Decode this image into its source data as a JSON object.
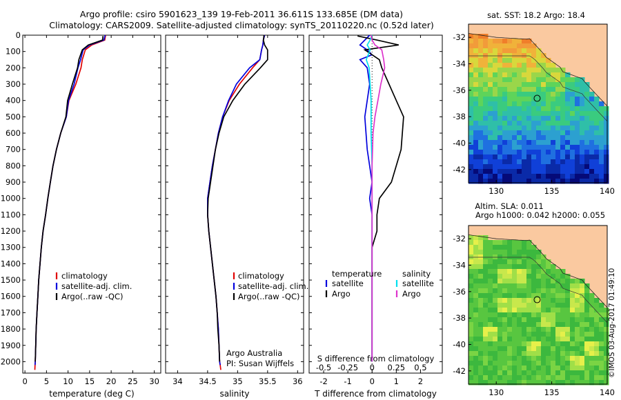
{
  "header": {
    "line1": "Argo profile: csiro 5901623_139 19-Feb-2011 36.611S 133.685E (DM data)",
    "line2": "Climatology: CARS2009. Satellite-adjusted climatology: synTS_20110220.nc (0.52d later)"
  },
  "watermark": "©IMOS 03-Aug-2017 01:49:10",
  "colors": {
    "climatology": "#e00000",
    "satellite": "#0000dd",
    "argo": "#000000",
    "satellite_salinity": "#00e0ee",
    "argo_salinity": "#dd33cc",
    "land": "#fac9a0"
  },
  "chart_data": [
    {
      "type": "line",
      "panel": "temperature",
      "xlabel": "temperature (deg C)",
      "ylabel": "",
      "xlim": [
        -0.5,
        31.5
      ],
      "ylim": [
        2070,
        0
      ],
      "xticks": [
        0,
        5,
        10,
        15,
        20,
        25,
        30
      ],
      "yticks": [
        0,
        100,
        200,
        300,
        400,
        500,
        600,
        700,
        800,
        900,
        1000,
        1100,
        1200,
        1300,
        1400,
        1500,
        1600,
        1700,
        1800,
        1900,
        2000
      ],
      "legend": [
        "climatology",
        "satellite-adj. clim.",
        "Argo(..raw -QC)"
      ],
      "series": [
        {
          "name": "climatology",
          "color": "climatology",
          "x": [
            18.7,
            18.5,
            15.5,
            14.0,
            13.3,
            13.0,
            11.8,
            10.2,
            9.6,
            8.3,
            7.3,
            6.5,
            5.9,
            5.3,
            4.8,
            4.2,
            3.8,
            3.5,
            3.2,
            3.0,
            2.8,
            2.6,
            2.5,
            2.4,
            2.35,
            2.3
          ],
          "y": [
            0,
            30,
            60,
            90,
            150,
            200,
            300,
            400,
            500,
            600,
            700,
            800,
            900,
            1000,
            1100,
            1200,
            1300,
            1400,
            1500,
            1600,
            1700,
            1800,
            1900,
            2000,
            2020,
            2050
          ]
        },
        {
          "name": "satellite-adj. clim.",
          "color": "satellite",
          "x": [
            18.6,
            18.3,
            15.0,
            13.5,
            12.9,
            12.3,
            11.4,
            10.1,
            9.6,
            8.3,
            7.3,
            6.5,
            5.9,
            5.3,
            4.8,
            4.2,
            3.8,
            3.5,
            3.2,
            3.0,
            2.8,
            2.6,
            2.5,
            2.4,
            2.35
          ],
          "y": [
            0,
            30,
            60,
            90,
            150,
            200,
            300,
            400,
            500,
            600,
            700,
            800,
            900,
            1000,
            1100,
            1200,
            1300,
            1400,
            1500,
            1600,
            1700,
            1800,
            1900,
            2000,
            2020
          ]
        },
        {
          "name": "Argo(..raw -QC)",
          "color": "argo",
          "x": [
            18.1,
            18.0,
            14.7,
            13.3,
            12.5,
            12.2,
            11.0,
            9.9,
            9.5,
            8.3,
            7.3,
            6.5,
            5.9,
            5.3,
            4.8,
            4.2,
            3.8,
            3.5,
            3.2,
            3.0,
            2.8,
            2.6,
            2.5,
            2.4
          ],
          "y": [
            5,
            30,
            60,
            90,
            150,
            200,
            300,
            400,
            500,
            600,
            700,
            800,
            900,
            1000,
            1100,
            1200,
            1300,
            1400,
            1500,
            1600,
            1700,
            1800,
            1900,
            2000
          ]
        }
      ]
    },
    {
      "type": "line",
      "panel": "salinity",
      "xlabel": "salinity",
      "ylabel": "",
      "xlim": [
        33.8,
        36.1
      ],
      "ylim": [
        2070,
        0
      ],
      "xticks": [
        34,
        34.5,
        35,
        35.5,
        36
      ],
      "xtick_labels": [
        "34",
        "34.5",
        "35",
        "35.5",
        "36"
      ],
      "legend": [
        "climatology",
        "satellite-adj. clim.",
        "Argo(..raw -QC)"
      ],
      "annotation": [
        "Argo Australia",
        "PI: Susan Wijffels"
      ],
      "series": [
        {
          "name": "climatology",
          "color": "climatology",
          "x": [
            35.45,
            35.43,
            35.42,
            35.4,
            35.37,
            35.25,
            35.03,
            34.86,
            34.75,
            34.68,
            34.63,
            34.58,
            34.54,
            34.5,
            34.5,
            34.52,
            34.55,
            34.58,
            34.61,
            34.64,
            34.66,
            34.68,
            34.69,
            34.7,
            34.71,
            34.72
          ],
          "y": [
            0,
            30,
            60,
            90,
            150,
            200,
            300,
            400,
            500,
            600,
            700,
            800,
            900,
            1000,
            1100,
            1200,
            1300,
            1400,
            1500,
            1600,
            1700,
            1800,
            1900,
            2000,
            2020,
            2050
          ]
        },
        {
          "name": "satellite-adj. clim.",
          "color": "satellite",
          "x": [
            35.45,
            35.43,
            35.42,
            35.4,
            35.37,
            35.2,
            34.98,
            34.85,
            34.75,
            34.68,
            34.63,
            34.58,
            34.54,
            34.5,
            34.5,
            34.52,
            34.55,
            34.58,
            34.61,
            34.64,
            34.66,
            34.68,
            34.69,
            34.7,
            34.71
          ],
          "y": [
            0,
            30,
            60,
            90,
            150,
            200,
            300,
            400,
            500,
            600,
            700,
            800,
            900,
            1000,
            1100,
            1200,
            1300,
            1400,
            1500,
            1600,
            1700,
            1800,
            1900,
            2000,
            2020
          ]
        },
        {
          "name": "Argo(..raw -QC)",
          "color": "argo",
          "x": [
            35.44,
            35.43,
            35.45,
            35.5,
            35.5,
            35.38,
            35.12,
            34.92,
            34.77,
            34.69,
            34.63,
            34.59,
            34.55,
            34.51,
            34.5,
            34.52,
            34.55,
            34.58,
            34.61,
            34.64,
            34.66,
            34.67,
            34.69,
            34.7
          ],
          "y": [
            0,
            30,
            60,
            90,
            150,
            200,
            300,
            400,
            500,
            600,
            700,
            800,
            900,
            1000,
            1100,
            1200,
            1300,
            1400,
            1500,
            1600,
            1700,
            1800,
            1900,
            2000
          ]
        }
      ]
    },
    {
      "type": "line",
      "panel": "difference",
      "xlabel": "T difference from climatology",
      "top_label": "S difference from climatology",
      "xlim": [
        -2.6,
        2.9
      ],
      "ylim": [
        2070,
        0
      ],
      "xticks": [
        -2,
        -1,
        0,
        1,
        2
      ],
      "s_ticks": [
        -0.5,
        -0.25,
        0,
        0.25,
        0.5
      ],
      "s_tick_labels": [
        "-0.5",
        "-0.25",
        "0",
        "0.25",
        "0.5"
      ],
      "s_scale": 4,
      "legend": {
        "temperature_title": "temperature",
        "salinity_title": "salinity",
        "items": [
          "satellite",
          "Argo",
          "satellite",
          "Argo"
        ]
      },
      "series": [
        {
          "name": "T satellite",
          "color": "satellite",
          "x": [
            -0.1,
            -0.3,
            -0.5,
            -0.2,
            0.0,
            -0.5,
            -0.2,
            -0.1,
            -0.3,
            -0.2,
            0.0,
            -0.1,
            0.0,
            0.0,
            0.0,
            0.0,
            0.0,
            0.0,
            0.0,
            0.0,
            0.0
          ],
          "y": [
            0,
            30,
            60,
            90,
            120,
            150,
            200,
            300,
            500,
            700,
            900,
            1000,
            1100,
            1200,
            1300,
            1400,
            1500,
            1600,
            1700,
            1800,
            2000
          ]
        },
        {
          "name": "T Argo",
          "color": "argo",
          "x": [
            -0.6,
            0.2,
            1.1,
            -0.3,
            0.3,
            0.4,
            0.7,
            1.0,
            1.3,
            1.2,
            0.8,
            0.3,
            0.2,
            0.2,
            0.0,
            0.0,
            0.0,
            0.0,
            0.0,
            0.0
          ],
          "y": [
            5,
            30,
            60,
            90,
            150,
            200,
            300,
            400,
            500,
            700,
            900,
            1000,
            1100,
            1200,
            1300,
            1400,
            1500,
            1600,
            1800,
            2000
          ]
        },
        {
          "name": "S satellite",
          "color": "satellite_salinity",
          "x": [
            0.0,
            -0.02,
            -0.05,
            -0.02,
            -0.06,
            -0.03,
            -0.02,
            -0.01,
            -0.01,
            0.0,
            0.0,
            0.0,
            0.0,
            0.0,
            0.0,
            0.0
          ],
          "y": [
            0,
            30,
            60,
            90,
            150,
            200,
            300,
            400,
            600,
            800,
            1000,
            1200,
            1400,
            1600,
            1800,
            2000
          ]
        },
        {
          "name": "S Argo",
          "color": "argo_salinity",
          "x": [
            -0.01,
            0.0,
            0.03,
            0.1,
            0.12,
            0.13,
            0.09,
            0.06,
            0.03,
            0.01,
            0.0,
            0.0,
            0.0,
            0.0,
            0.0,
            0.0
          ],
          "y": [
            0,
            30,
            60,
            90,
            150,
            200,
            300,
            400,
            500,
            600,
            800,
            1000,
            1200,
            1400,
            1600,
            2000
          ]
        }
      ]
    },
    {
      "type": "heatmap",
      "panel": "sst_map",
      "title": "sat. SST: 18.2  Argo: 18.4",
      "xlim": [
        127.5,
        140
      ],
      "ylim": [
        -43,
        -31
      ],
      "xticks": [
        130,
        135,
        140
      ],
      "yticks": [
        -32,
        -34,
        -36,
        -38,
        -40,
        -42
      ],
      "marker": {
        "lon": 133.685,
        "lat": -36.611
      }
    },
    {
      "type": "heatmap",
      "panel": "sla_map",
      "title": [
        "Altim. SLA: 0.011",
        "Argo h1000: 0.042 h2000: 0.055"
      ],
      "xlim": [
        127.5,
        140
      ],
      "ylim": [
        -43,
        -31
      ],
      "xticks": [
        130,
        135,
        140
      ],
      "yticks": [
        -32,
        -34,
        -36,
        -38,
        -40,
        -42
      ],
      "marker": {
        "lon": 133.685,
        "lat": -36.611
      }
    }
  ]
}
